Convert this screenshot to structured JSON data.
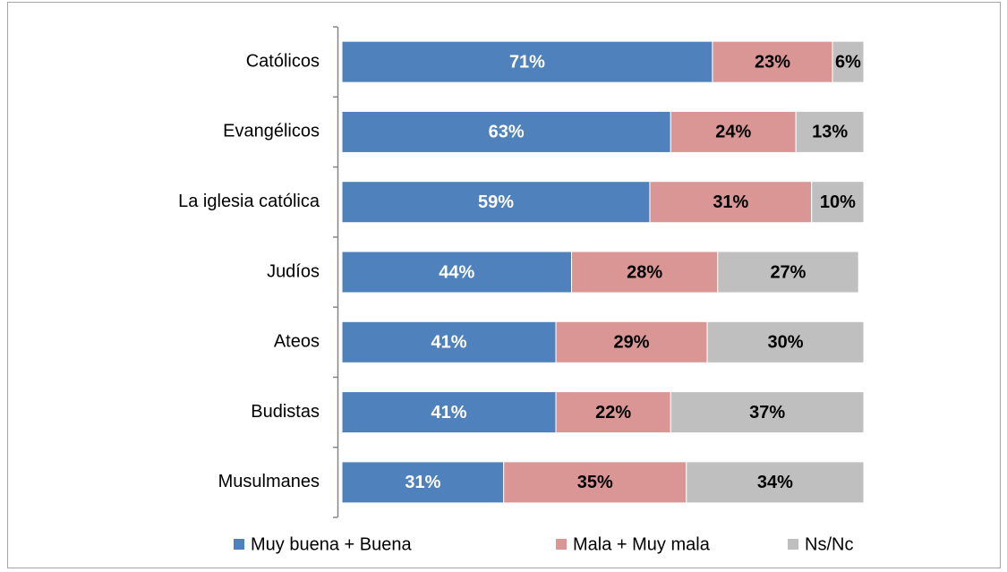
{
  "chart_data": {
    "type": "stacked-bar-horizontal",
    "categories": [
      "Católicos",
      "Evangélicos",
      "La iglesia católica",
      "Judíos",
      "Ateos",
      "Budistas",
      "Musulmanes"
    ],
    "series": [
      {
        "name": "Muy buena + Buena",
        "color": "#4f81bd",
        "label_color": "#ffffff",
        "values": [
          71,
          63,
          59,
          44,
          41,
          41,
          31
        ],
        "value_labels": [
          "71%",
          "63%",
          "59%",
          "44%",
          "41%",
          "41%",
          "31%"
        ]
      },
      {
        "name": "Mala + Muy mala",
        "color": "#d99694",
        "label_color": "#000000",
        "values": [
          23,
          24,
          31,
          28,
          29,
          22,
          35
        ],
        "value_labels": [
          "23%",
          "24%",
          "31%",
          "28%",
          "29%",
          "22%",
          "35%"
        ]
      },
      {
        "name": "Ns/Nc",
        "color": "#bfbfbf",
        "label_color": "#000000",
        "values": [
          6,
          13,
          10,
          27,
          30,
          37,
          34
        ],
        "value_labels": [
          "6%",
          "13%",
          "10%",
          "27%",
          "30%",
          "37%",
          "34%"
        ]
      }
    ],
    "xlim": [
      0,
      100
    ],
    "legend": "bottom"
  }
}
